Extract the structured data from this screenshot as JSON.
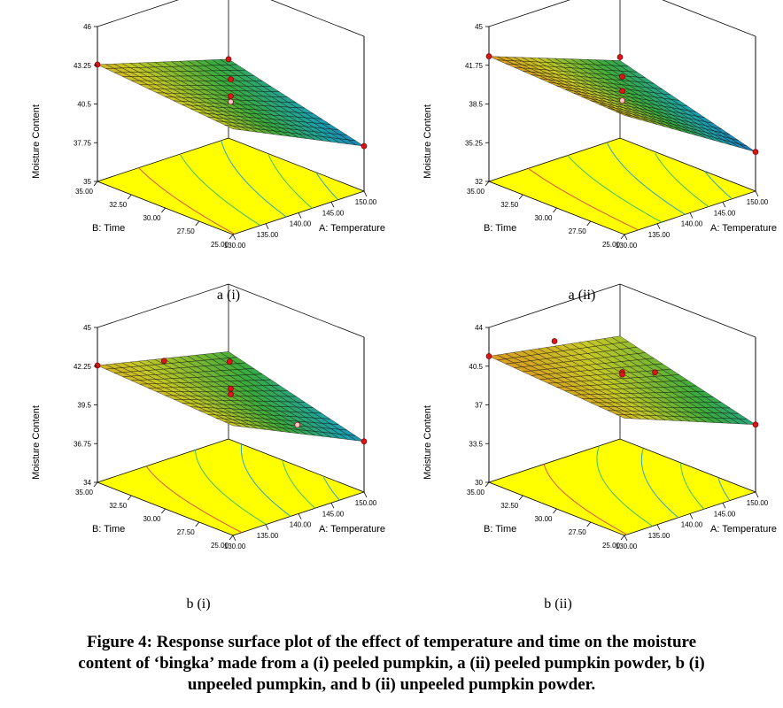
{
  "chart_data": [
    {
      "panel_label": "a (i)",
      "type": "surface",
      "zlabel": "Moisture Content",
      "xlabel": "A: Temperature",
      "ylabel": "B: Time",
      "z_ticks": [
        "35",
        "37.75",
        "40.5",
        "43.25",
        "46"
      ],
      "x_ticks": [
        "130.00",
        "135.00",
        "140.00",
        "145.00",
        "150.00"
      ],
      "y_ticks": [
        "25.00",
        "27.50",
        "30.00",
        "32.50",
        "35.00"
      ],
      "zlim": [
        35,
        46
      ],
      "xlim": [
        130,
        150
      ],
      "ylim": [
        25,
        35
      ],
      "corners": {
        "t130_y35": 43.3,
        "t150_y35": 40.6,
        "t130_y25": 42.5,
        "t150_y25": 38.2
      },
      "design_points": [
        {
          "temperature": 130,
          "time": 35,
          "moisture": 43.3
        },
        {
          "temperature": 140,
          "time": 30,
          "moisture": 42.6
        },
        {
          "temperature": 140,
          "time": 30,
          "moisture": 41.4
        },
        {
          "temperature": 140,
          "time": 30,
          "moisture": 41.0
        },
        {
          "temperature": 150,
          "time": 35,
          "moisture": 40.6
        },
        {
          "temperature": 150,
          "time": 25,
          "moisture": 38.2
        }
      ],
      "floor_color": "#ffff00"
    },
    {
      "panel_label": "a (ii)",
      "type": "surface",
      "zlabel": "Moisture Content",
      "xlabel": "A: Temperature",
      "ylabel": "B: Time",
      "z_ticks": [
        "32",
        "35.25",
        "38.5",
        "41.75",
        "45"
      ],
      "x_ticks": [
        "130.00",
        "135.00",
        "140.00",
        "145.00",
        "150.00"
      ],
      "y_ticks": [
        "25.00",
        "27.50",
        "30.00",
        "32.50",
        "35.00"
      ],
      "zlim": [
        32,
        45
      ],
      "xlim": [
        130,
        150
      ],
      "ylim": [
        25,
        35
      ],
      "corners": {
        "t130_y35": 42.5,
        "t150_y35": 38.5,
        "t130_y25": 42.0,
        "t150_y25": 35.3
      },
      "design_points": [
        {
          "temperature": 130,
          "time": 35,
          "moisture": 42.5
        },
        {
          "temperature": 140,
          "time": 30,
          "moisture": 41.2
        },
        {
          "temperature": 140,
          "time": 30,
          "moisture": 40.0
        },
        {
          "temperature": 140,
          "time": 30,
          "moisture": 39.2
        },
        {
          "temperature": 150,
          "time": 35,
          "moisture": 38.8
        },
        {
          "temperature": 150,
          "time": 25,
          "moisture": 35.3
        }
      ],
      "floor_color": "#ffff00"
    },
    {
      "panel_label": "b (i)",
      "type": "surface",
      "zlabel": "Moisture Content",
      "xlabel": "A: Temperature",
      "ylabel": "B: Time",
      "z_ticks": [
        "34",
        "36.75",
        "39.5",
        "42.25",
        "45"
      ],
      "x_ticks": [
        "130.00",
        "135.00",
        "140.00",
        "145.00",
        "150.00"
      ],
      "y_ticks": [
        "25.00",
        "27.50",
        "30.00",
        "32.50",
        "35.00"
      ],
      "zlim": [
        34,
        45
      ],
      "xlim": [
        130,
        150
      ],
      "ylim": [
        25,
        35
      ],
      "corners": {
        "t130_y35": 42.3,
        "t150_y35": 40.2,
        "t130_y25": 41.8,
        "t150_y25": 37.6
      },
      "design_points": [
        {
          "temperature": 130,
          "time": 35,
          "moisture": 42.3
        },
        {
          "temperature": 135,
          "time": 32.5,
          "moisture": 42.8
        },
        {
          "temperature": 140,
          "time": 30,
          "moisture": 41.0
        },
        {
          "temperature": 140,
          "time": 30,
          "moisture": 40.6
        },
        {
          "temperature": 145,
          "time": 32.5,
          "moisture": 41.2
        },
        {
          "temperature": 145,
          "time": 27.5,
          "moisture": 38.6
        },
        {
          "temperature": 150,
          "time": 25,
          "moisture": 37.6
        }
      ],
      "floor_color": "#ffff00"
    },
    {
      "panel_label": "b (ii)",
      "type": "surface",
      "zlabel": "Moisture Content",
      "xlabel": "A: Temperature",
      "ylabel": "B: Time",
      "z_ticks": [
        "30",
        "33.5",
        "37",
        "40.5",
        "44"
      ],
      "x_ticks": [
        "130.00",
        "135.00",
        "140.00",
        "145.00",
        "150.00"
      ],
      "y_ticks": [
        "25.00",
        "27.50",
        "30.00",
        "32.50",
        "35.00"
      ],
      "zlim": [
        30,
        44
      ],
      "xlim": [
        130,
        150
      ],
      "ylim": [
        25,
        35
      ],
      "corners": {
        "t130_y35": 41.4,
        "t150_y35": 39.3,
        "t130_y25": 40.6,
        "t150_y25": 36.1
      },
      "design_points": [
        {
          "temperature": 130,
          "time": 35,
          "moisture": 41.4
        },
        {
          "temperature": 140,
          "time": 35,
          "moisture": 40.8
        },
        {
          "temperature": 140,
          "time": 30,
          "moisture": 40.4
        },
        {
          "temperature": 140,
          "time": 30,
          "moisture": 40.2
        },
        {
          "temperature": 145,
          "time": 30,
          "moisture": 39.4
        },
        {
          "temperature": 150,
          "time": 25,
          "moisture": 36.1
        }
      ],
      "floor_color": "#ffff00"
    }
  ],
  "caption": {
    "line1": "Figure 4: Response surface plot of the effect of temperature and time on the moisture",
    "line2": "content of ‘bingka’ made from a (i) peeled pumpkin, a (ii) peeled pumpkin powder, b (i)",
    "line3": "unpeeled pumpkin, and b (ii) unpeeled pumpkin powder."
  }
}
